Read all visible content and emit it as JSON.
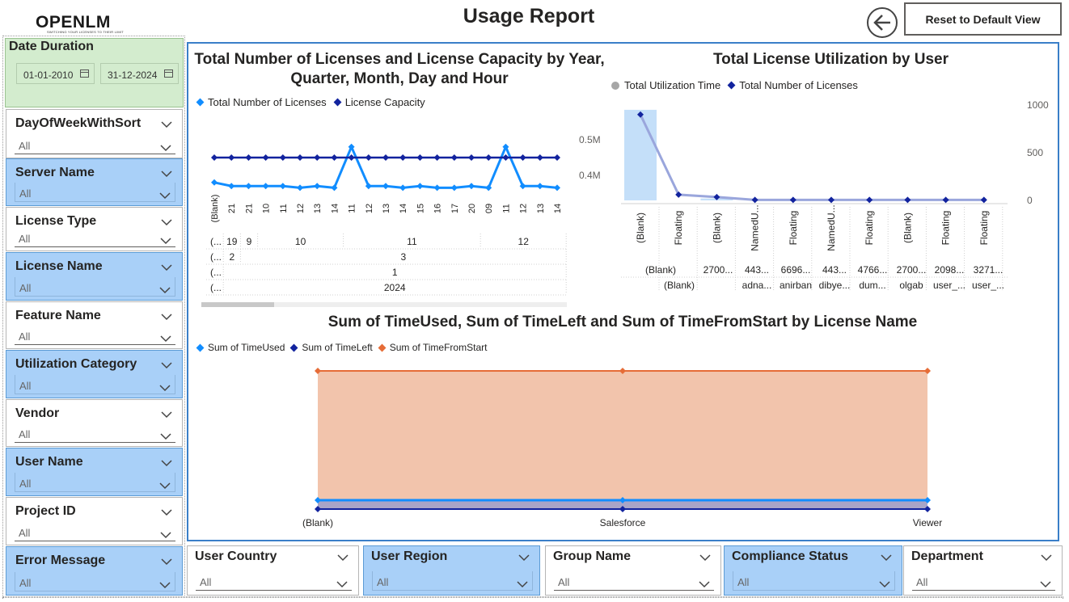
{
  "logo": {
    "name": "OPENLM",
    "tagline": "SWITCHING YOUR LICENSES TO THEIR LIMIT"
  },
  "header": {
    "title": "Usage Report",
    "reset_label": "Reset to Default View"
  },
  "date_filter": {
    "title": "Date Duration",
    "start": "01-01-2010",
    "end": "31-12-2024"
  },
  "slicers": [
    {
      "title": "DayOfWeekWithSort",
      "value": "All",
      "style": "white"
    },
    {
      "title": "Server Name",
      "value": "All",
      "style": "blue"
    },
    {
      "title": "License Type",
      "value": "All",
      "style": "white"
    },
    {
      "title": "License Name",
      "value": "All",
      "style": "blue"
    },
    {
      "title": "Feature Name",
      "value": "All",
      "style": "white"
    },
    {
      "title": "Utilization Category",
      "value": "All",
      "style": "blue"
    },
    {
      "title": "Vendor",
      "value": "All",
      "style": "white"
    },
    {
      "title": "User Name",
      "value": "All",
      "style": "blue"
    },
    {
      "title": "Project ID",
      "value": "All",
      "style": "white"
    },
    {
      "title": "Error Message",
      "value": "All",
      "style": "blue"
    }
  ],
  "bottom_slicers": [
    {
      "title": "User Country",
      "value": "All",
      "style": "white"
    },
    {
      "title": "User Region",
      "value": "All",
      "style": "blue"
    },
    {
      "title": "Group Name",
      "value": "All",
      "style": "white"
    },
    {
      "title": "Compliance Status",
      "value": "All",
      "style": "blue"
    },
    {
      "title": "Department",
      "value": "All",
      "style": "white"
    }
  ],
  "colors": {
    "series_light": "#118dff",
    "series_dark": "#12239e",
    "series_orange": "#e66c37",
    "area_fill": "#f2c4ac",
    "slicer_blue": "#a9d0f8",
    "date_green": "#d3ecce"
  },
  "chart_data": [
    {
      "type": "line",
      "title": "Total Number of Licenses and License Capacity by Year, Quarter, Month, Day and Hour",
      "legend": [
        "Total Number of Licenses",
        "License Capacity"
      ],
      "y_ticks": [
        "0.5M",
        "0.4M"
      ],
      "x": [
        "(Blank)",
        "21",
        "21",
        "10",
        "11",
        "12",
        "13",
        "14",
        "11",
        "12",
        "13",
        "14",
        "15",
        "16",
        "17",
        "20",
        "09",
        "11",
        "12",
        "13",
        "14"
      ],
      "series": [
        {
          "name": "Total Number of Licenses",
          "values": [
            0.38,
            0.37,
            0.37,
            0.37,
            0.37,
            0.365,
            0.37,
            0.365,
            0.48,
            0.37,
            0.37,
            0.365,
            0.37,
            0.365,
            0.365,
            0.37,
            0.365,
            0.48,
            0.37,
            0.37,
            0.365
          ]
        },
        {
          "name": "License Capacity",
          "values": [
            0.45,
            0.45,
            0.45,
            0.45,
            0.45,
            0.45,
            0.45,
            0.45,
            0.45,
            0.45,
            0.45,
            0.45,
            0.45,
            0.45,
            0.45,
            0.45,
            0.45,
            0.45,
            0.45,
            0.45,
            0.45
          ]
        }
      ],
      "hierarchy": {
        "day_row": [
          {
            "label": "(...",
            "span": [
              0,
              1
            ]
          },
          {
            "label": "19",
            "span": [
              1,
              2
            ]
          },
          {
            "label": "9",
            "span": [
              2,
              3
            ]
          },
          {
            "label": "10",
            "span": [
              3,
              8
            ]
          },
          {
            "label": "11",
            "span": [
              8,
              16
            ]
          },
          {
            "label": "12",
            "span": [
              16,
              21
            ]
          }
        ],
        "month_row": [
          {
            "label": "(...",
            "span": [
              0,
              1
            ]
          },
          {
            "label": "2",
            "span": [
              1,
              2
            ]
          },
          {
            "label": "3",
            "span": [
              2,
              21
            ]
          }
        ],
        "quarter_row": [
          {
            "label": "(...",
            "span": [
              0,
              1
            ]
          },
          {
            "label": "1",
            "span": [
              1,
              21
            ]
          }
        ],
        "year_row": [
          {
            "label": "(...",
            "span": [
              0,
              1
            ]
          },
          {
            "label": "2024",
            "span": [
              1,
              21
            ]
          }
        ]
      }
    },
    {
      "type": "bar",
      "title": "Total License Utilization by User",
      "legend": [
        "Total Utilization Time",
        "Total Number of Licenses"
      ],
      "y_ticks": [
        "1000",
        "500",
        "0"
      ],
      "ylim": [
        0,
        1000
      ],
      "categories": [
        "(Blank)",
        "Floating",
        "(Blank)",
        "NamedU...",
        "Floating",
        "NamedU...",
        "Floating",
        "(Blank)",
        "Floating",
        "Floating"
      ],
      "level2": [
        "(Blank)",
        "2700...",
        "443...",
        "6696...",
        "443...",
        "4766...",
        "2700...",
        "2098...",
        "3271..."
      ],
      "level3": [
        "(Blank)",
        "adna...",
        "anirban",
        "dibye...",
        "dum...",
        "olgab",
        "user_...",
        "user_..."
      ],
      "series": [
        {
          "name": "Total Utilization Time",
          "values": [
            0.95,
            0.0,
            0.02,
            0,
            0,
            0,
            0,
            0,
            0,
            0
          ]
        },
        {
          "name": "Total Number of Licenses",
          "values": [
            900,
            60,
            35,
            5,
            5,
            5,
            5,
            5,
            5,
            5
          ]
        }
      ]
    },
    {
      "type": "area",
      "title": "Sum of TimeUsed, Sum of TimeLeft and Sum of TimeFromStart by License Name",
      "legend": [
        "Sum of TimeUsed",
        "Sum of TimeLeft",
        "Sum of TimeFromStart"
      ],
      "categories": [
        "(Blank)",
        "Salesforce",
        "Viewer"
      ],
      "series": [
        {
          "name": "Sum of TimeUsed",
          "values": [
            1,
            1,
            1
          ]
        },
        {
          "name": "Sum of TimeLeft",
          "values": [
            0.95,
            0.95,
            0.95
          ]
        },
        {
          "name": "Sum of TimeFromStart",
          "values": [
            13,
            13,
            13
          ]
        }
      ]
    }
  ]
}
